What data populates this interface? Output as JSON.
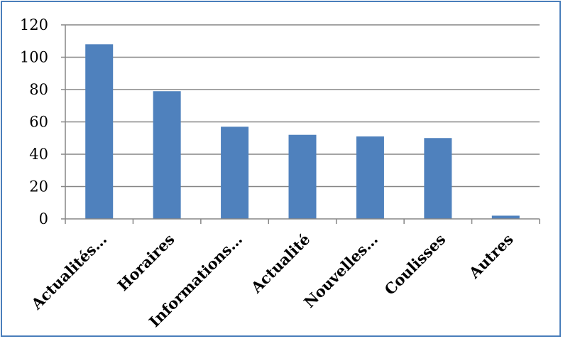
{
  "chart_data": {
    "type": "bar",
    "categories": [
      "Actualités…",
      "Horaires",
      "Informations…",
      "Actualité",
      "Nouvelles…",
      "Coulisses",
      "Autres"
    ],
    "values": [
      108,
      79,
      57,
      52,
      51,
      50,
      2
    ],
    "yticks": [
      "0",
      "20",
      "40",
      "60",
      "80",
      "100",
      "120"
    ],
    "ylim": [
      0,
      120
    ],
    "grid": true,
    "legend": "none",
    "colors": {
      "bar": "#4f81bd",
      "gridline": "#868686",
      "axis": "#868686",
      "border": "#4a7ebb"
    }
  }
}
